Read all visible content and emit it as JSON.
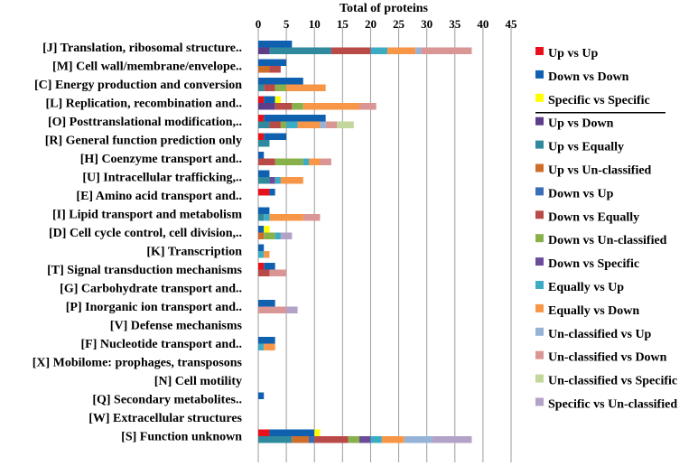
{
  "chart_data": {
    "type": "bar",
    "orientation": "horizontal-grouped-stacked",
    "xlabel": "Total of proteins",
    "xlim": [
      0,
      45
    ],
    "xticks": [
      0,
      5,
      10,
      15,
      20,
      25,
      30,
      35,
      40,
      45
    ],
    "grid": "vertical",
    "legend_position": "right",
    "categories": [
      "[J] Translation, ribosomal structure..",
      "[M] Cell wall/membrane/envelope..",
      "[C] Energy production and conversion",
      "[L] Replication, recombination and..",
      "[O] Posttranslational modification,..",
      "[R] General function prediction only",
      "[H] Coenzyme transport and..",
      "[U] Intracellular trafficking,..",
      "[E] Amino acid transport and..",
      "[I] Lipid transport and metabolism",
      "[D] Cell cycle control, cell division,..",
      "[K] Transcription",
      "[T] Signal transduction mechanisms",
      "[G] Carbohydrate transport and..",
      "[P] Inorganic ion transport and..",
      "[V] Defense mechanisms",
      "[F] Nucleotide transport and..",
      "[X] Mobilome: prophages, transposons",
      "[N] Cell motility",
      "[Q] Secondary metabolites..",
      "[W] Extracellular structures",
      "[S] Function unknown"
    ],
    "groups": [
      {
        "name": "group-1",
        "series": [
          "Up vs Up",
          "Down vs Down",
          "Specific vs Specific"
        ]
      },
      {
        "name": "group-2",
        "series": [
          "Up vs Down",
          "Up vs Equally",
          "Up vs Un-classified",
          "Down vs Up",
          "Down vs Equally",
          "Down vs Un-classified",
          "Down vs Specific",
          "Equally vs Up",
          "Equally vs Down",
          "Un-classified vs Up",
          "Un-classified vs Down",
          "Un-classified vs Specific",
          "Specific vs Un-classified"
        ]
      }
    ],
    "series": [
      {
        "name": "Up vs Up",
        "color": "#e8101a",
        "group": 0,
        "values": [
          0,
          0,
          0,
          1,
          1,
          1,
          0,
          0,
          2,
          0,
          0,
          0,
          1,
          0,
          0,
          0,
          0,
          0,
          0,
          0,
          0,
          2
        ]
      },
      {
        "name": "Down vs Down",
        "color": "#1060b0",
        "group": 0,
        "values": [
          6,
          5,
          8,
          2,
          11,
          4,
          1,
          2,
          1,
          2,
          1,
          1,
          2,
          0,
          3,
          0,
          3,
          0,
          0,
          1,
          0,
          8
        ]
      },
      {
        "name": "Specific vs Specific",
        "color": "#ffff00",
        "group": 0,
        "values": [
          0,
          0,
          0,
          1,
          0,
          0,
          0,
          0,
          0,
          0,
          1,
          0,
          0,
          0,
          0,
          0,
          0,
          0,
          0,
          0,
          0,
          1
        ]
      },
      {
        "name": "Up vs Down",
        "color": "#5e3d88",
        "group": 1,
        "values": [
          2,
          0,
          0,
          3,
          0,
          0,
          0,
          0,
          0,
          0,
          0,
          0,
          0,
          0,
          0,
          0,
          0,
          0,
          0,
          0,
          0,
          0
        ]
      },
      {
        "name": "Up vs Equally",
        "color": "#2e8a9c",
        "group": 1,
        "values": [
          11,
          0,
          1,
          0,
          2,
          2,
          0,
          2,
          0,
          1,
          0,
          0,
          0,
          0,
          0,
          0,
          0,
          0,
          0,
          0,
          0,
          6
        ]
      },
      {
        "name": "Up vs Un-classified",
        "color": "#cf6e2a",
        "group": 1,
        "values": [
          0,
          2,
          0,
          0,
          0,
          0,
          0,
          0,
          0,
          0,
          1,
          0,
          0,
          0,
          0,
          0,
          0,
          0,
          0,
          0,
          0,
          3
        ]
      },
      {
        "name": "Down vs Up",
        "color": "#3b6fb5",
        "group": 1,
        "values": [
          0,
          0,
          0,
          0,
          0,
          0,
          0,
          0,
          0,
          0,
          0,
          0,
          0,
          0,
          0,
          0,
          0,
          0,
          0,
          0,
          0,
          1
        ]
      },
      {
        "name": "Down vs Equally",
        "color": "#b84b48",
        "group": 1,
        "values": [
          7,
          2,
          2,
          3,
          2,
          0,
          3,
          0,
          0,
          0,
          0,
          0,
          2,
          0,
          0,
          0,
          0,
          0,
          0,
          0,
          0,
          6
        ]
      },
      {
        "name": "Down vs Un-classified",
        "color": "#88b04b",
        "group": 1,
        "values": [
          0,
          0,
          2,
          2,
          1,
          0,
          5,
          0,
          0,
          0,
          2,
          0,
          0,
          0,
          0,
          0,
          0,
          0,
          0,
          0,
          0,
          2
        ]
      },
      {
        "name": "Down vs Specific",
        "color": "#6b4c9a",
        "group": 1,
        "values": [
          0,
          0,
          0,
          0,
          0,
          0,
          0,
          1,
          0,
          0,
          0,
          0,
          0,
          0,
          0,
          0,
          0,
          0,
          0,
          0,
          0,
          2
        ]
      },
      {
        "name": "Equally vs Up",
        "color": "#3cacc4",
        "group": 1,
        "values": [
          3,
          0,
          0,
          0,
          2,
          0,
          1,
          1,
          0,
          1,
          1,
          1,
          0,
          0,
          0,
          0,
          1,
          0,
          0,
          0,
          0,
          2
        ]
      },
      {
        "name": "Equally vs Down",
        "color": "#f79646",
        "group": 1,
        "values": [
          5,
          0,
          7,
          10,
          4,
          0,
          2,
          4,
          0,
          6,
          0,
          1,
          0,
          0,
          0,
          0,
          2,
          0,
          0,
          0,
          0,
          4
        ]
      },
      {
        "name": "Un-classified vs Up",
        "color": "#95b3d7",
        "group": 1,
        "values": [
          1,
          0,
          0,
          0,
          1,
          0,
          0,
          0,
          0,
          0,
          0,
          0,
          0,
          0,
          0,
          0,
          0,
          0,
          0,
          0,
          0,
          5
        ]
      },
      {
        "name": "Un-classified vs Down",
        "color": "#d99694",
        "group": 1,
        "values": [
          9,
          0,
          0,
          3,
          2,
          0,
          2,
          0,
          0,
          3,
          0,
          0,
          3,
          0,
          5,
          0,
          0,
          0,
          0,
          0,
          0,
          0
        ]
      },
      {
        "name": "Un-classified vs Specific",
        "color": "#c3d69b",
        "group": 1,
        "values": [
          0,
          0,
          0,
          0,
          3,
          0,
          0,
          0,
          0,
          0,
          0,
          0,
          0,
          0,
          0,
          0,
          0,
          0,
          0,
          0,
          0,
          0
        ]
      },
      {
        "name": "Specific vs Un-classified",
        "color": "#b3a2c7",
        "group": 1,
        "values": [
          0,
          0,
          0,
          0,
          0,
          0,
          0,
          0,
          0,
          0,
          2,
          0,
          0,
          0,
          2,
          0,
          0,
          0,
          0,
          0,
          0,
          7
        ]
      }
    ],
    "legend": [
      "Up vs Up",
      "Down vs Down",
      "Specific vs Specific",
      "Up vs Down",
      "Up vs Equally",
      "Up vs Un-classified",
      "Down vs Up",
      "Down vs Equally",
      "Down vs Un-classified",
      "Down vs Specific",
      "Equally vs Up",
      "Equally vs Down",
      "Un-classified vs Up",
      "Un-classified vs Down",
      "Un-classified vs Specific",
      "Specific vs Un-classified"
    ],
    "legend_underline_after": "Specific vs Specific"
  }
}
